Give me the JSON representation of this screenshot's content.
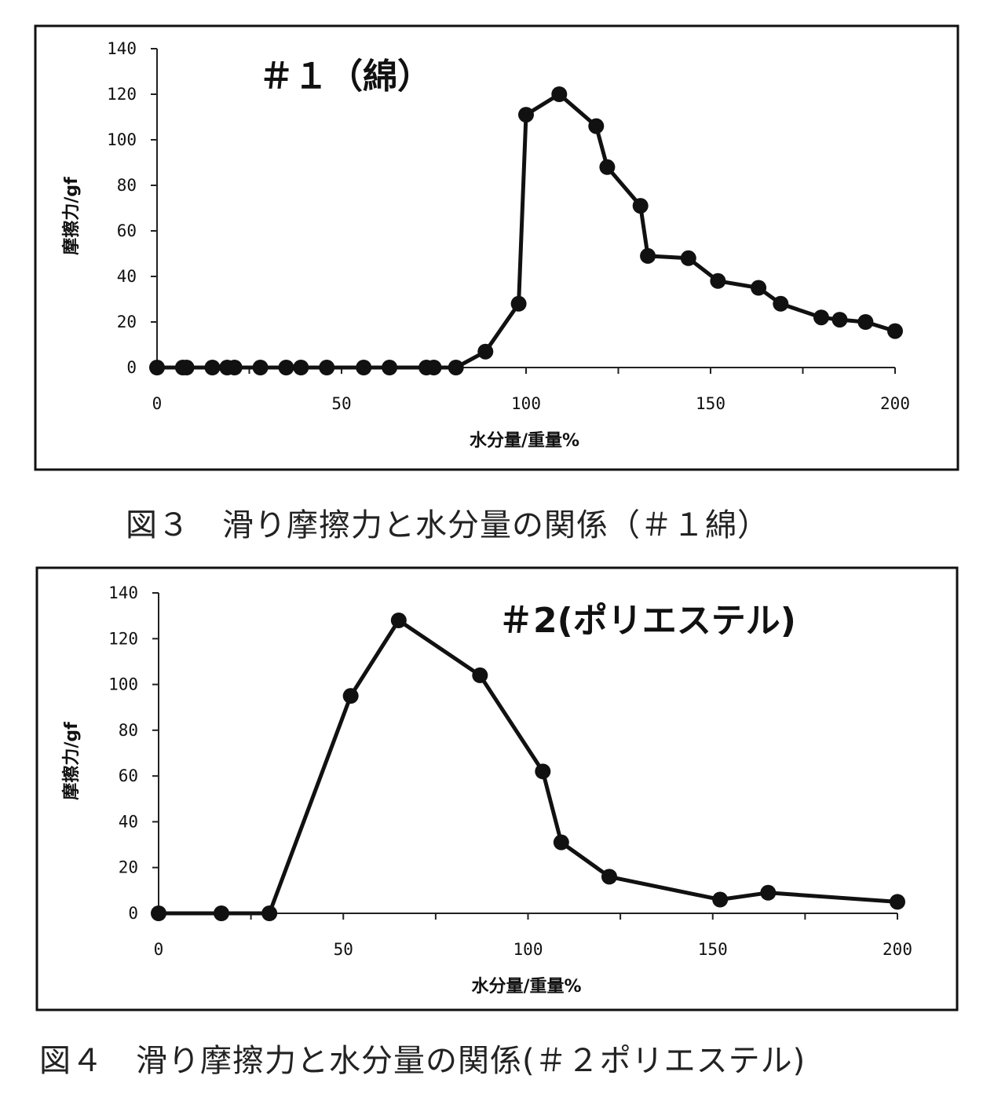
{
  "charts": [
    {
      "caption": "図３　滑り摩擦力と水分量の関係（＃１綿）",
      "chart_data": {
        "type": "line",
        "title": "＃１（綿）",
        "xlabel": "水分量/重量%",
        "ylabel": "摩擦力/gf",
        "xlim": [
          0,
          200
        ],
        "ylim": [
          0,
          140
        ],
        "xticks": [
          0,
          50,
          100,
          150,
          200
        ],
        "yticks": [
          0,
          20,
          40,
          60,
          80,
          100,
          120,
          140
        ],
        "grid": false,
        "line_color": "#111111",
        "series": [
          {
            "x": [
              0,
              7,
              8,
              15,
              19,
              21,
              28,
              35,
              39,
              46,
              56,
              63,
              73,
              75,
              81,
              89,
              98,
              100,
              109,
              119,
              122,
              131,
              133,
              144,
              152,
              163,
              169,
              180,
              185,
              192,
              200
            ],
            "y": [
              0,
              0,
              0,
              0,
              0,
              0,
              0,
              0,
              0,
              0,
              0,
              0,
              0,
              0,
              0,
              7,
              28,
              111,
              120,
              106,
              88,
              71,
              49,
              48,
              38,
              35,
              28,
              22,
              21,
              20,
              16
            ]
          }
        ]
      }
    },
    {
      "caption": "図４　滑り摩擦力と水分量の関係(＃２ポリエステル)",
      "chart_data": {
        "type": "line",
        "title": "＃2(ポリエステル)",
        "xlabel": "水分量/重量%",
        "ylabel": "摩擦力/gf",
        "xlim": [
          0,
          200
        ],
        "ylim": [
          0,
          140
        ],
        "xticks": [
          0,
          50,
          100,
          150,
          200
        ],
        "yticks": [
          0,
          20,
          40,
          60,
          80,
          100,
          120,
          140
        ],
        "grid": false,
        "line_color": "#111111",
        "series": [
          {
            "x": [
              0,
              17,
              30,
              52,
              65,
              87,
              104,
              109,
              122,
              152,
              165,
              200
            ],
            "y": [
              0,
              0,
              0,
              95,
              128,
              104,
              62,
              31,
              16,
              6,
              9,
              5
            ]
          }
        ]
      }
    }
  ]
}
